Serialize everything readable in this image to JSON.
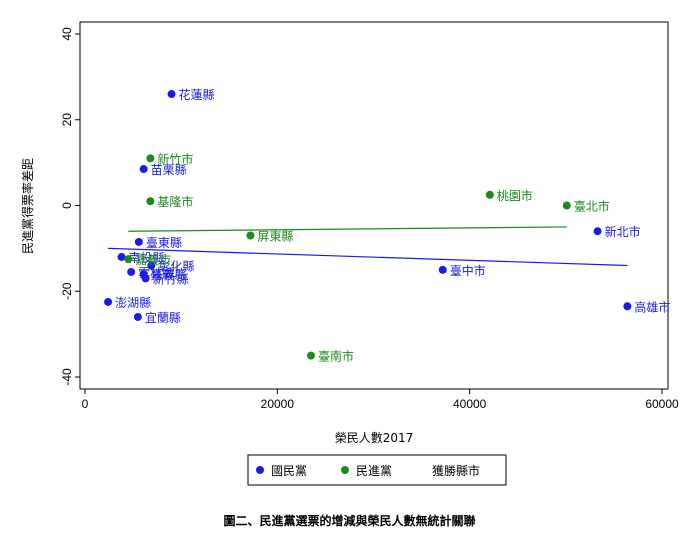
{
  "caption": "圖二、民進黨選票的增減與榮民人數無統計關聯",
  "chart_data": {
    "type": "scatter",
    "xlabel": "榮民人數2017",
    "ylabel": "民進黨得票率差距",
    "xlim": [
      0,
      60000
    ],
    "ylim": [
      -40,
      40
    ],
    "x_ticks": [
      0,
      20000,
      40000,
      60000
    ],
    "y_ticks": [
      -40,
      -20,
      0,
      20,
      40
    ],
    "grid": false,
    "legend_position": "bottom",
    "legend": [
      "國民黨",
      "民進黨",
      "獲勝縣市"
    ],
    "series": [
      {
        "name": "國民黨",
        "color": "#1a1aee",
        "points": [
          {
            "x": 9000,
            "y": 26,
            "label": "花蓮縣"
          },
          {
            "x": 6100,
            "y": 8.5,
            "label": "苗栗縣"
          },
          {
            "x": 5600,
            "y": -8.5,
            "label": "臺東縣"
          },
          {
            "x": 3800,
            "y": -12,
            "label": "南投縣"
          },
          {
            "x": 6900,
            "y": -14,
            "label": "彰化縣"
          },
          {
            "x": 4800,
            "y": -15.5,
            "label": "雲林縣"
          },
          {
            "x": 6100,
            "y": -16,
            "label": "嘉義縣"
          },
          {
            "x": 6300,
            "y": -17,
            "label": "新竹縣"
          },
          {
            "x": 2400,
            "y": -22.5,
            "label": "澎湖縣"
          },
          {
            "x": 5500,
            "y": -26,
            "label": "宜蘭縣"
          },
          {
            "x": 37200,
            "y": -15,
            "label": "臺中市"
          },
          {
            "x": 53300,
            "y": -6,
            "label": "新北市"
          },
          {
            "x": 56400,
            "y": -23.5,
            "label": "高雄市"
          }
        ]
      },
      {
        "name": "民進黨",
        "color": "#1a8a1a",
        "points": [
          {
            "x": 6800,
            "y": 11,
            "label": "新竹市"
          },
          {
            "x": 6800,
            "y": 1,
            "label": "基隆市"
          },
          {
            "x": 17200,
            "y": -7,
            "label": "屏東縣"
          },
          {
            "x": 4500,
            "y": -12.5,
            "label": "嘉義市"
          },
          {
            "x": 42100,
            "y": 2.5,
            "label": "桃園市"
          },
          {
            "x": 50100,
            "y": 0,
            "label": "臺北市"
          },
          {
            "x": 23500,
            "y": -35,
            "label": "臺南市"
          }
        ]
      }
    ],
    "fit_lines": [
      {
        "series": "國民黨",
        "color": "#1a1aee",
        "x": [
          2400,
          56400
        ],
        "y": [
          -10,
          -14
        ]
      },
      {
        "series": "民進黨",
        "color": "#1a8a1a",
        "x": [
          4500,
          50100
        ],
        "y": [
          -6,
          -5
        ]
      }
    ]
  }
}
